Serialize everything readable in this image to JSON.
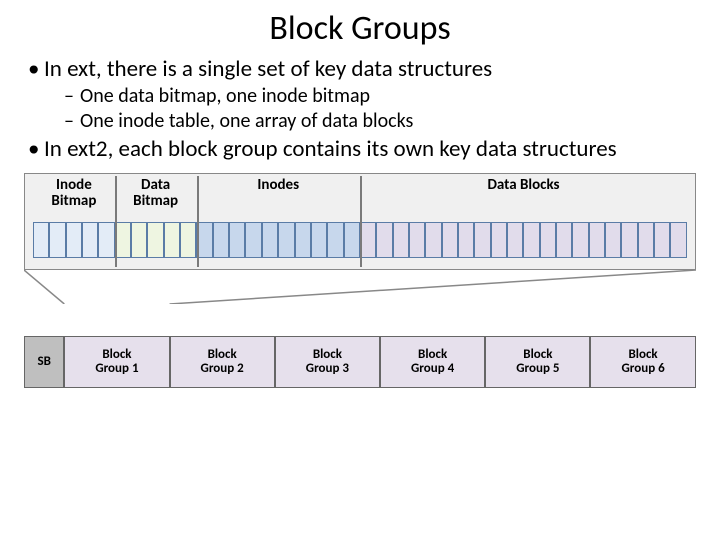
{
  "title": "Block Groups",
  "bullets": [
    {
      "level": 1,
      "text": "In ext, there is a single set of key data structures"
    },
    {
      "level": 2,
      "text": "One data bitmap, one inode bitmap"
    },
    {
      "level": 2,
      "text": "One inode table, one array of data blocks"
    },
    {
      "level": 1,
      "text": "In ext2, each block group contains its own key data structures"
    }
  ],
  "diagram1": {
    "background": "#f0f0f0",
    "sections": [
      {
        "label": "Inode\nBitmap",
        "cells": 5,
        "cell_color": "#e3ecf7"
      },
      {
        "label": "Data\nBitmap",
        "cells": 5,
        "cell_color": "#eef5e1"
      },
      {
        "label": "Inodes",
        "cells": 10,
        "cell_color": "#c7d7ec"
      },
      {
        "label": "Data Blocks",
        "cells": 20,
        "cell_color": "#e1dceb"
      }
    ],
    "cell_border": "#5a7ca6",
    "divider_color": "#7a7a7a"
  },
  "diagram2": {
    "sb": {
      "label": "SB",
      "width_pct": 6,
      "bg": "#bfbfbf"
    },
    "groups": [
      {
        "label": "Block\nGroup 1",
        "width_pct": 15.66,
        "bg": "#e6e0ec"
      },
      {
        "label": "Block\nGroup 2",
        "width_pct": 15.66,
        "bg": "#e6e0ec"
      },
      {
        "label": "Block\nGroup 3",
        "width_pct": 15.66,
        "bg": "#e6e0ec"
      },
      {
        "label": "Block\nGroup 4",
        "width_pct": 15.66,
        "bg": "#e6e0ec"
      },
      {
        "label": "Block\nGroup 5",
        "width_pct": 15.66,
        "bg": "#e6e0ec"
      },
      {
        "label": "Block\nGroup 6",
        "width_pct": 15.66,
        "bg": "#e6e0ec"
      }
    ]
  },
  "fonts": {
    "title": 34,
    "b1": 23,
    "b2": 20,
    "label": 15,
    "bg_label": 13
  },
  "colors": {
    "text": "#000000",
    "page_bg": "#ffffff"
  }
}
